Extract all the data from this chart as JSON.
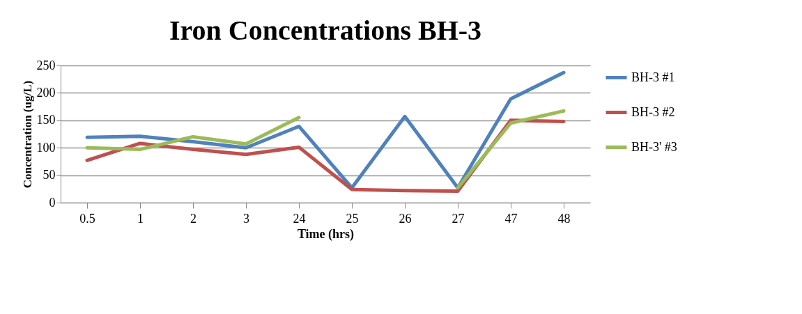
{
  "chart_data": {
    "type": "line",
    "title": "Iron Concentrations BH-3",
    "xlabel": "Time (hrs)",
    "ylabel": "Concentration (ug/L)",
    "categories": [
      "0.5",
      "1",
      "2",
      "3",
      "24",
      "25",
      "26",
      "27",
      "47",
      "48"
    ],
    "series": [
      {
        "name": "BH-3 #1",
        "color": "#4f81bd",
        "values": [
          119,
          121,
          111,
          100,
          139,
          27,
          157,
          27,
          189,
          237
        ]
      },
      {
        "name": "BH-3 #2",
        "color": "#c0504d",
        "values": [
          77,
          108,
          97,
          88,
          101,
          24,
          22,
          21,
          150,
          148
        ]
      },
      {
        "name": "BH-3' #3",
        "color": "#9bbb59",
        "values": [
          100,
          97,
          120,
          107,
          155,
          null,
          null,
          27,
          145,
          167
        ]
      }
    ],
    "ylim": [
      0,
      250
    ],
    "yticks": [
      0,
      50,
      100,
      150,
      200,
      250
    ],
    "grid": "y",
    "legend": "right",
    "marker": "none",
    "line_style": "solid"
  }
}
